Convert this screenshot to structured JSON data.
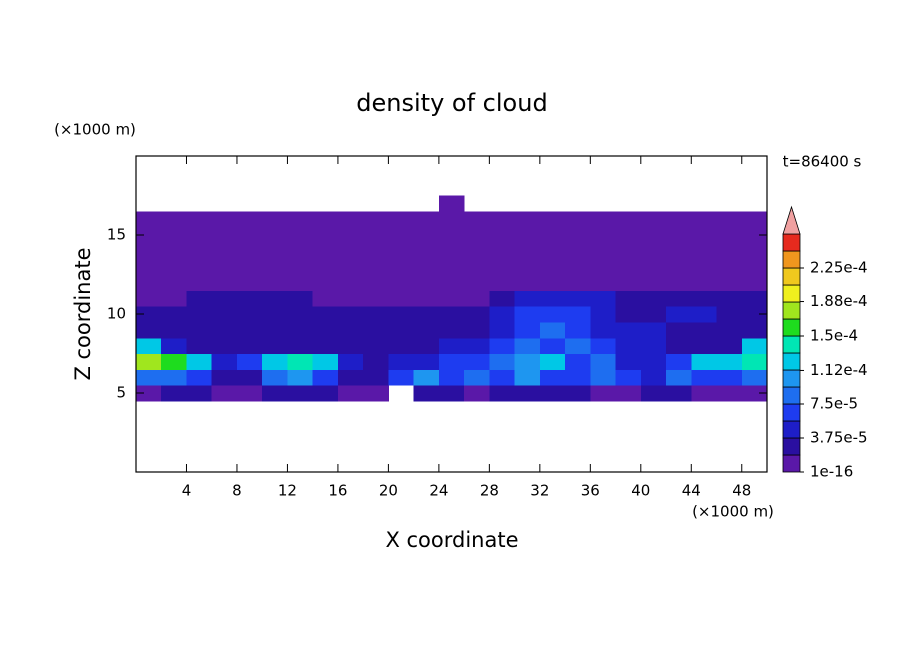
{
  "chart_data": {
    "type": "contour",
    "title": "density of cloud",
    "time_label": "t=86400 s",
    "x_label": "X coordinate",
    "y_label": "Z coordinate",
    "x_unit": "(×1000 m)",
    "y_unit": "(×1000 m)",
    "xlim": [
      0,
      50
    ],
    "ylim": [
      0,
      20
    ],
    "xticks": [
      4,
      8,
      12,
      16,
      20,
      24,
      28,
      32,
      36,
      40,
      44,
      48
    ],
    "yticks": [
      5,
      10,
      15
    ],
    "x": [
      1,
      3,
      5,
      7,
      9,
      11,
      13,
      15,
      17,
      19,
      21,
      23,
      25,
      27,
      29,
      31,
      33,
      35,
      37,
      39,
      41,
      43,
      45,
      47,
      49
    ],
    "y": [
      5,
      6,
      7,
      8,
      9,
      10,
      11,
      12,
      13,
      14,
      15,
      16,
      17
    ],
    "z": [
      [
        1e-06,
        2.5e-05,
        2.5e-05,
        1e-06,
        1e-06,
        2.5e-05,
        2.5e-05,
        2.5e-05,
        1e-06,
        1e-06,
        null,
        2.5e-05,
        2.5e-05,
        1e-06,
        2.5e-05,
        2.5e-05,
        2.5e-05,
        2.5e-05,
        1e-06,
        1e-06,
        2.5e-05,
        2.5e-05,
        1e-06,
        1e-06,
        1e-06
      ],
      [
        8e-05,
        8e-05,
        6e-05,
        2.5e-05,
        2.5e-05,
        8e-05,
        0.0001,
        6e-05,
        2.5e-05,
        2.5e-05,
        6e-05,
        0.0001,
        6e-05,
        8e-05,
        6e-05,
        0.0001,
        6e-05,
        6e-05,
        8e-05,
        6e-05,
        4e-05,
        8e-05,
        6e-05,
        6e-05,
        8e-05
      ],
      [
        0.000175,
        0.000155,
        0.00012,
        4e-05,
        6e-05,
        0.00012,
        0.00014,
        0.00012,
        4e-05,
        2.5e-05,
        4e-05,
        4e-05,
        6e-05,
        6e-05,
        8e-05,
        0.0001,
        0.00012,
        6e-05,
        8e-05,
        4e-05,
        4e-05,
        6e-05,
        0.00012,
        0.00012,
        0.00014
      ],
      [
        0.00012,
        4e-05,
        2.5e-05,
        2.5e-05,
        2.5e-05,
        2.5e-05,
        2.5e-05,
        2.5e-05,
        2.5e-05,
        2.5e-05,
        2.5e-05,
        2.5e-05,
        4e-05,
        4e-05,
        6e-05,
        8e-05,
        6e-05,
        8e-05,
        6e-05,
        4e-05,
        4e-05,
        2.5e-05,
        2.5e-05,
        2.5e-05,
        0.00012
      ],
      [
        2.5e-05,
        2.5e-05,
        2.5e-05,
        2.5e-05,
        2.5e-05,
        2.5e-05,
        2.5e-05,
        2.5e-05,
        2.5e-05,
        2.5e-05,
        2.5e-05,
        2.5e-05,
        2.5e-05,
        2.5e-05,
        4e-05,
        6e-05,
        8e-05,
        6e-05,
        4e-05,
        4e-05,
        4e-05,
        2.5e-05,
        2.5e-05,
        2.5e-05,
        2.5e-05
      ],
      [
        2.5e-05,
        2.5e-05,
        2.5e-05,
        2.5e-05,
        2.5e-05,
        2.5e-05,
        2.5e-05,
        2.5e-05,
        2.5e-05,
        2.5e-05,
        2.5e-05,
        2.5e-05,
        2.5e-05,
        2.5e-05,
        4e-05,
        6e-05,
        6e-05,
        6e-05,
        4e-05,
        2.5e-05,
        2.5e-05,
        4e-05,
        4e-05,
        2.5e-05,
        2.5e-05
      ],
      [
        1e-06,
        1e-06,
        2.5e-05,
        2.5e-05,
        2.5e-05,
        2.5e-05,
        2.5e-05,
        1e-06,
        1e-06,
        1e-06,
        1e-06,
        1e-06,
        1e-06,
        1e-06,
        2.5e-05,
        4e-05,
        4e-05,
        4e-05,
        4e-05,
        2.5e-05,
        2.5e-05,
        2.5e-05,
        2.5e-05,
        2.5e-05,
        2.5e-05
      ],
      [
        1e-06,
        1e-06,
        1e-06,
        1e-06,
        1e-06,
        1e-06,
        1e-06,
        1e-06,
        1e-06,
        1e-06,
        1e-06,
        1e-06,
        1e-06,
        1e-06,
        1e-06,
        1e-06,
        1e-06,
        1e-06,
        1e-06,
        1e-06,
        1e-06,
        1e-06,
        1e-06,
        1e-06,
        1e-06
      ],
      [
        1e-06,
        1e-06,
        1e-06,
        1e-06,
        1e-06,
        1e-06,
        1e-06,
        1e-06,
        1e-06,
        1e-06,
        1e-06,
        1e-06,
        1e-06,
        1e-06,
        1e-06,
        1e-06,
        1e-06,
        1e-06,
        1e-06,
        1e-06,
        1e-06,
        1e-06,
        1e-06,
        1e-06,
        1e-06
      ],
      [
        1e-06,
        1e-06,
        1e-06,
        1e-06,
        1e-06,
        1e-06,
        1e-06,
        1e-06,
        1e-06,
        1e-06,
        1e-06,
        1e-06,
        1e-06,
        1e-06,
        1e-06,
        1e-06,
        1e-06,
        1e-06,
        1e-06,
        1e-06,
        1e-06,
        1e-06,
        1e-06,
        1e-06,
        1e-06
      ],
      [
        1e-06,
        1e-06,
        1e-06,
        1e-06,
        1e-06,
        1e-06,
        1e-06,
        1e-06,
        1e-06,
        1e-06,
        1e-06,
        1e-06,
        1e-06,
        1e-06,
        1e-06,
        1e-06,
        1e-06,
        1e-06,
        1e-06,
        1e-06,
        1e-06,
        1e-06,
        1e-06,
        1e-06,
        1e-06
      ],
      [
        1e-06,
        1e-06,
        1e-06,
        1e-06,
        1e-06,
        1e-06,
        1e-06,
        1e-06,
        1e-06,
        1e-06,
        1e-06,
        1e-06,
        1e-06,
        1e-06,
        1e-06,
        1e-06,
        1e-06,
        1e-06,
        1e-06,
        1e-06,
        1e-06,
        1e-06,
        1e-06,
        1e-06,
        1e-06
      ],
      [
        null,
        null,
        null,
        null,
        null,
        null,
        null,
        null,
        null,
        null,
        null,
        null,
        1e-06,
        null,
        null,
        null,
        null,
        null,
        null,
        null,
        null,
        null,
        null,
        null,
        null
      ]
    ],
    "colorbar": {
      "lim": [
        1e-16,
        0.0002625
      ],
      "colors": [
        "#5a18a8",
        "#2a0fa0",
        "#1e1ec8",
        "#1e3cf0",
        "#1e6ef0",
        "#1e96f0",
        "#00c8e6",
        "#00e6b4",
        "#1edc1e",
        "#a0e61e",
        "#f0f01e",
        "#f0c81e",
        "#f0961e",
        "#e62a1e"
      ],
      "over_color": "#f0a0a0",
      "ticks": [
        1e-16,
        {
          "value": 3.75e-05,
          "label": "3.75e-5"
        },
        {
          "value": 7.5e-05,
          "label": "7.5e-5"
        },
        {
          "value": 0.000112,
          "label": "1.12e-4"
        },
        {
          "value": 0.00015,
          "label": "1.5e-4"
        },
        {
          "value": 0.000188,
          "label": "1.88e-4"
        },
        {
          "value": 0.000225,
          "label": "2.25e-4"
        }
      ]
    }
  }
}
